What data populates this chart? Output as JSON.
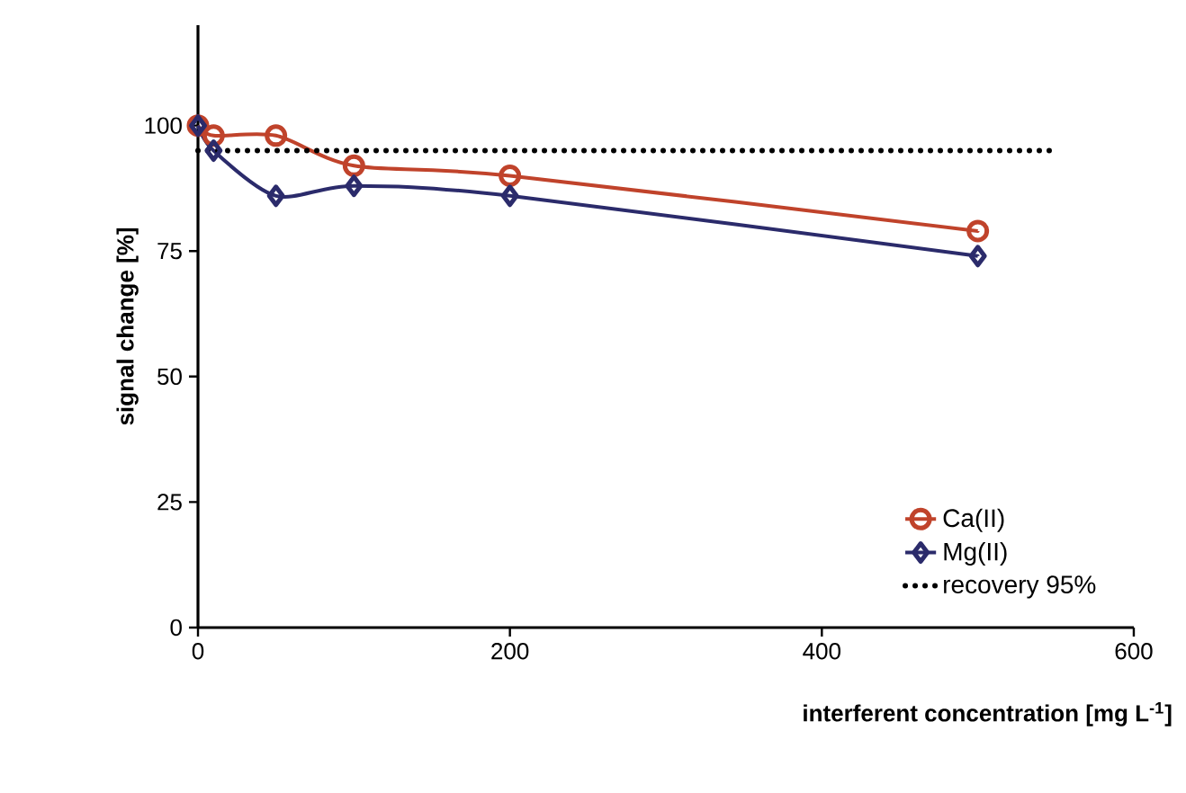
{
  "chart_data": {
    "type": "line",
    "xlabel": "interferent concentration    [mg L$^{-1}$]",
    "ylabel": "signal change     [%]",
    "xlim": [
      0,
      600
    ],
    "ylim": [
      0,
      120
    ],
    "xticks": [
      0,
      200,
      400,
      600
    ],
    "yticks": [
      0,
      25,
      50,
      75,
      100
    ],
    "grid": false,
    "legend": "bottom right",
    "series": [
      {
        "name": "Ca(II)",
        "color": "#c0432b",
        "marker": "circle",
        "x": [
          0,
          10,
          50,
          100,
          200,
          500
        ],
        "values": [
          100,
          98,
          98,
          92,
          90,
          79
        ]
      },
      {
        "name": "Mg(II)",
        "color": "#2b2b6b",
        "marker": "diamond",
        "x": [
          0,
          10,
          50,
          100,
          200,
          500
        ],
        "values": [
          100,
          95,
          86,
          88,
          86,
          74
        ]
      }
    ],
    "ref_lines": [
      {
        "axis": "y",
        "value": 95,
        "label": "recovery 95%",
        "color": "#000000",
        "line_style": "dotted"
      }
    ]
  }
}
